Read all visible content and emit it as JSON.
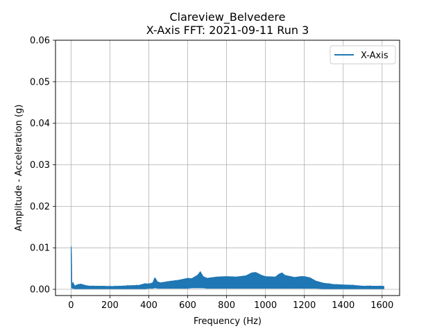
{
  "chart_data": {
    "type": "line",
    "title": "Clareview_Belvedere",
    "subtitle": "X-Axis FFT: 2021-09-11 Run 3",
    "xlabel": "Frequency (Hz)",
    "ylabel": "Amplitude - Acceleration (g)",
    "xlim": [
      -80,
      1690
    ],
    "ylim": [
      -0.0015,
      0.06
    ],
    "xticks": [
      0,
      200,
      400,
      600,
      800,
      1000,
      1200,
      1400,
      1600
    ],
    "xtick_labels": [
      "0",
      "200",
      "400",
      "600",
      "800",
      "1000",
      "1200",
      "1400",
      "1600"
    ],
    "yticks": [
      0.0,
      0.01,
      0.02,
      0.03,
      0.04,
      0.05,
      0.06
    ],
    "ytick_labels": [
      "0.00",
      "0.01",
      "0.02",
      "0.03",
      "0.04",
      "0.05",
      "0.06"
    ],
    "grid": true,
    "legend_position": "top-right",
    "series_color": "#1f77b4",
    "series": [
      {
        "name": "X-Axis",
        "envelope": {
          "x": [
            0,
            2,
            5,
            10,
            20,
            30,
            50,
            80,
            100,
            150,
            200,
            250,
            300,
            350,
            380,
            400,
            420,
            430,
            435,
            445,
            460,
            500,
            550,
            600,
            620,
            650,
            665,
            680,
            700,
            750,
            800,
            850,
            900,
            930,
            950,
            980,
            1000,
            1050,
            1070,
            1085,
            1100,
            1150,
            1180,
            1200,
            1230,
            1260,
            1300,
            1350,
            1400,
            1450,
            1500,
            1550,
            1600,
            1610
          ],
          "upper": [
            0.0104,
            0.01,
            0.001,
            0.0017,
            0.0008,
            0.0011,
            0.0013,
            0.0009,
            0.0008,
            0.0008,
            0.0007,
            0.0008,
            0.0009,
            0.001,
            0.0014,
            0.0013,
            0.0016,
            0.0028,
            0.0026,
            0.0018,
            0.0016,
            0.0019,
            0.0022,
            0.0027,
            0.0026,
            0.0034,
            0.0043,
            0.0031,
            0.0027,
            0.003,
            0.0031,
            0.003,
            0.0033,
            0.004,
            0.0041,
            0.0034,
            0.0031,
            0.003,
            0.0037,
            0.004,
            0.0034,
            0.0029,
            0.0031,
            0.0031,
            0.0028,
            0.002,
            0.0015,
            0.0012,
            0.0011,
            0.001,
            0.0008,
            0.0008,
            0.0008,
            0.0007
          ],
          "lower": [
            0.0078,
            0.0005,
            0.0002,
            0.0002,
            0.0001,
            0.0001,
            0.0001,
            0.0001,
            0.0001,
            0.0001,
            0.0001,
            0.0001,
            0.0001,
            0.0001,
            0.0001,
            0.0002,
            0.0002,
            0.0003,
            0.0003,
            0.0002,
            0.0002,
            0.0002,
            0.0002,
            0.0002,
            0.0003,
            0.0003,
            0.0003,
            0.0003,
            0.0002,
            0.0002,
            0.0002,
            0.0002,
            0.0002,
            0.0002,
            0.0002,
            0.0002,
            0.0002,
            0.0002,
            0.0002,
            0.0002,
            0.0002,
            0.0002,
            0.0002,
            0.0002,
            0.0002,
            0.0002,
            0.0001,
            0.0001,
            0.0001,
            0.0001,
            0.0001,
            0.0001,
            0.0001,
            0.0001
          ]
        }
      }
    ]
  }
}
